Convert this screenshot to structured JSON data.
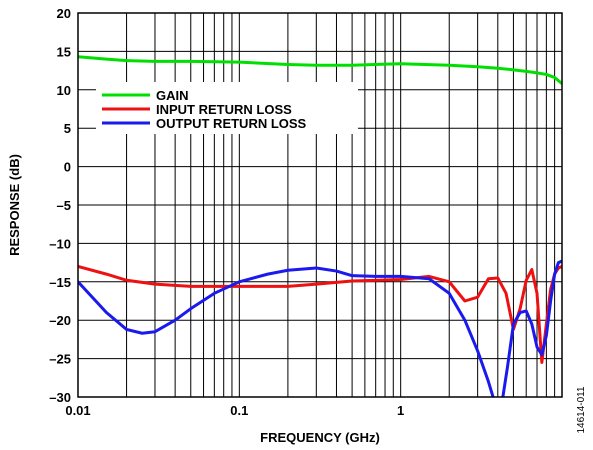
{
  "chart_data": {
    "type": "line",
    "xlabel": "FREQUENCY (GHz)",
    "ylabel": "RESPONSE (dB)",
    "xscale": "log",
    "xlim": [
      0.01,
      10
    ],
    "ylim": [
      -30,
      20
    ],
    "grid": true,
    "legend_position": "top-left",
    "x_tick_labels": [
      "0.01",
      "0.1",
      "1"
    ],
    "y_tick_labels": [
      "20",
      "15",
      "10",
      "5",
      "0",
      "–5",
      "–10",
      "–15",
      "–20",
      "–25",
      "–30"
    ],
    "figure_id": "14614-011",
    "series": [
      {
        "name": "GAIN",
        "color": "#00e000",
        "x": [
          0.01,
          0.015,
          0.02,
          0.03,
          0.05,
          0.1,
          0.2,
          0.3,
          0.5,
          1,
          2,
          3,
          4,
          5,
          6,
          7,
          8,
          9,
          10
        ],
        "y": [
          14.3,
          14.0,
          13.8,
          13.7,
          13.7,
          13.6,
          13.3,
          13.2,
          13.2,
          13.4,
          13.2,
          13.0,
          12.8,
          12.6,
          12.4,
          12.2,
          12.0,
          11.6,
          10.8
        ]
      },
      {
        "name": "INPUT RETURN LOSS",
        "color": "#ee1111",
        "x": [
          0.01,
          0.015,
          0.02,
          0.03,
          0.05,
          0.1,
          0.2,
          0.3,
          0.5,
          1,
          1.5,
          2,
          2.5,
          3,
          3.5,
          4,
          4.5,
          5,
          5.5,
          6,
          6.5,
          7,
          7.5,
          8,
          8.5,
          9,
          9.5,
          10
        ],
        "y": [
          -13.0,
          -14.0,
          -14.8,
          -15.3,
          -15.6,
          -15.6,
          -15.6,
          -15.3,
          -14.9,
          -14.7,
          -14.3,
          -15.0,
          -17.5,
          -17.0,
          -14.6,
          -14.5,
          -16.5,
          -21.2,
          -18.5,
          -14.8,
          -13.4,
          -16.5,
          -25.5,
          -20.5,
          -16.0,
          -14.0,
          -13.2,
          -13.0
        ]
      },
      {
        "name": "OUTPUT RETURN LOSS",
        "color": "#1a1aee",
        "x": [
          0.01,
          0.015,
          0.02,
          0.025,
          0.03,
          0.04,
          0.05,
          0.07,
          0.1,
          0.15,
          0.2,
          0.3,
          0.4,
          0.5,
          0.7,
          1,
          1.5,
          2,
          2.5,
          3,
          3.5,
          3.8,
          4,
          4.3,
          4.6,
          5,
          5.5,
          6,
          6.5,
          7,
          7.5,
          8,
          8.5,
          9,
          9.5,
          10
        ],
        "y": [
          -15.0,
          -19.0,
          -21.2,
          -21.7,
          -21.5,
          -20.0,
          -18.5,
          -16.5,
          -15.0,
          -14.0,
          -13.5,
          -13.2,
          -13.6,
          -14.2,
          -14.3,
          -14.3,
          -14.6,
          -16.5,
          -20.0,
          -24.0,
          -28.0,
          -30.5,
          -31.0,
          -30.0,
          -26.0,
          -20.5,
          -19.0,
          -18.8,
          -20.5,
          -23.5,
          -24.5,
          -22.0,
          -17.5,
          -14.0,
          -12.5,
          -12.3
        ]
      }
    ]
  }
}
